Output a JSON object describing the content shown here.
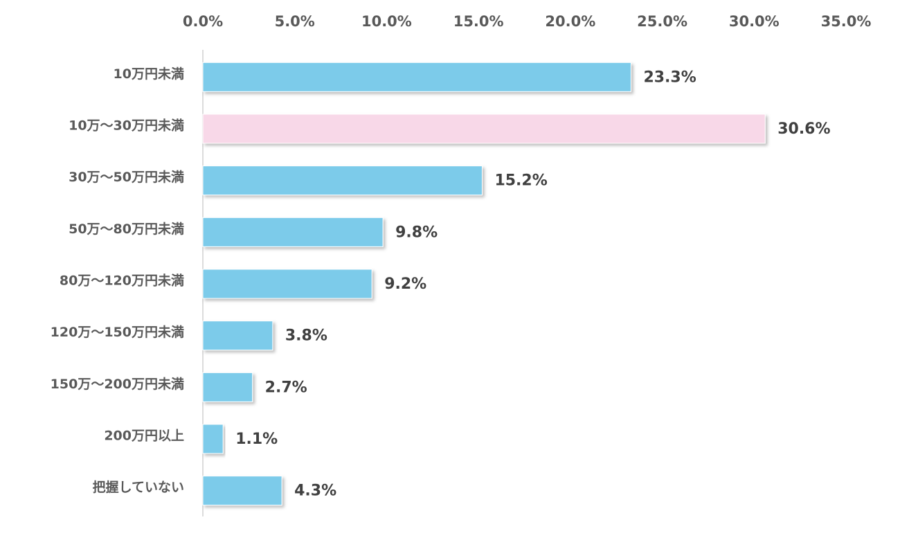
{
  "chart_data": {
    "type": "hbar",
    "categories": [
      "10万円未満",
      "10万～30万円未満",
      "30万～50万円未満",
      "50万～80万円未満",
      "80万～120万円未満",
      "120万～150万円未満",
      "150万～200万円未満",
      "200万円以上",
      "把握していない"
    ],
    "values": [
      23.3,
      30.6,
      15.2,
      9.8,
      9.2,
      3.8,
      2.7,
      1.1,
      4.3
    ],
    "value_labels": [
      "23.3%",
      "30.6%",
      "15.2%",
      "9.8%",
      "9.2%",
      "3.8%",
      "2.7%",
      "1.1%",
      "4.3%"
    ],
    "colors": [
      "#7ccbea",
      "#f8d8e8",
      "#7ccbea",
      "#7ccbea",
      "#7ccbea",
      "#7ccbea",
      "#7ccbea",
      "#7ccbea",
      "#7ccbea"
    ],
    "xlim": [
      0,
      35
    ],
    "xticks": [
      {
        "value": 0,
        "label": "0.0%"
      },
      {
        "value": 5,
        "label": "5.0%"
      },
      {
        "value": 10,
        "label": "10.0%"
      },
      {
        "value": 15,
        "label": "15.0%"
      },
      {
        "value": 20,
        "label": "20.0%"
      },
      {
        "value": 25,
        "label": "25.0%"
      },
      {
        "value": 30,
        "label": "30.0%"
      },
      {
        "value": 35,
        "label": "35.0%"
      }
    ],
    "grid": false
  }
}
